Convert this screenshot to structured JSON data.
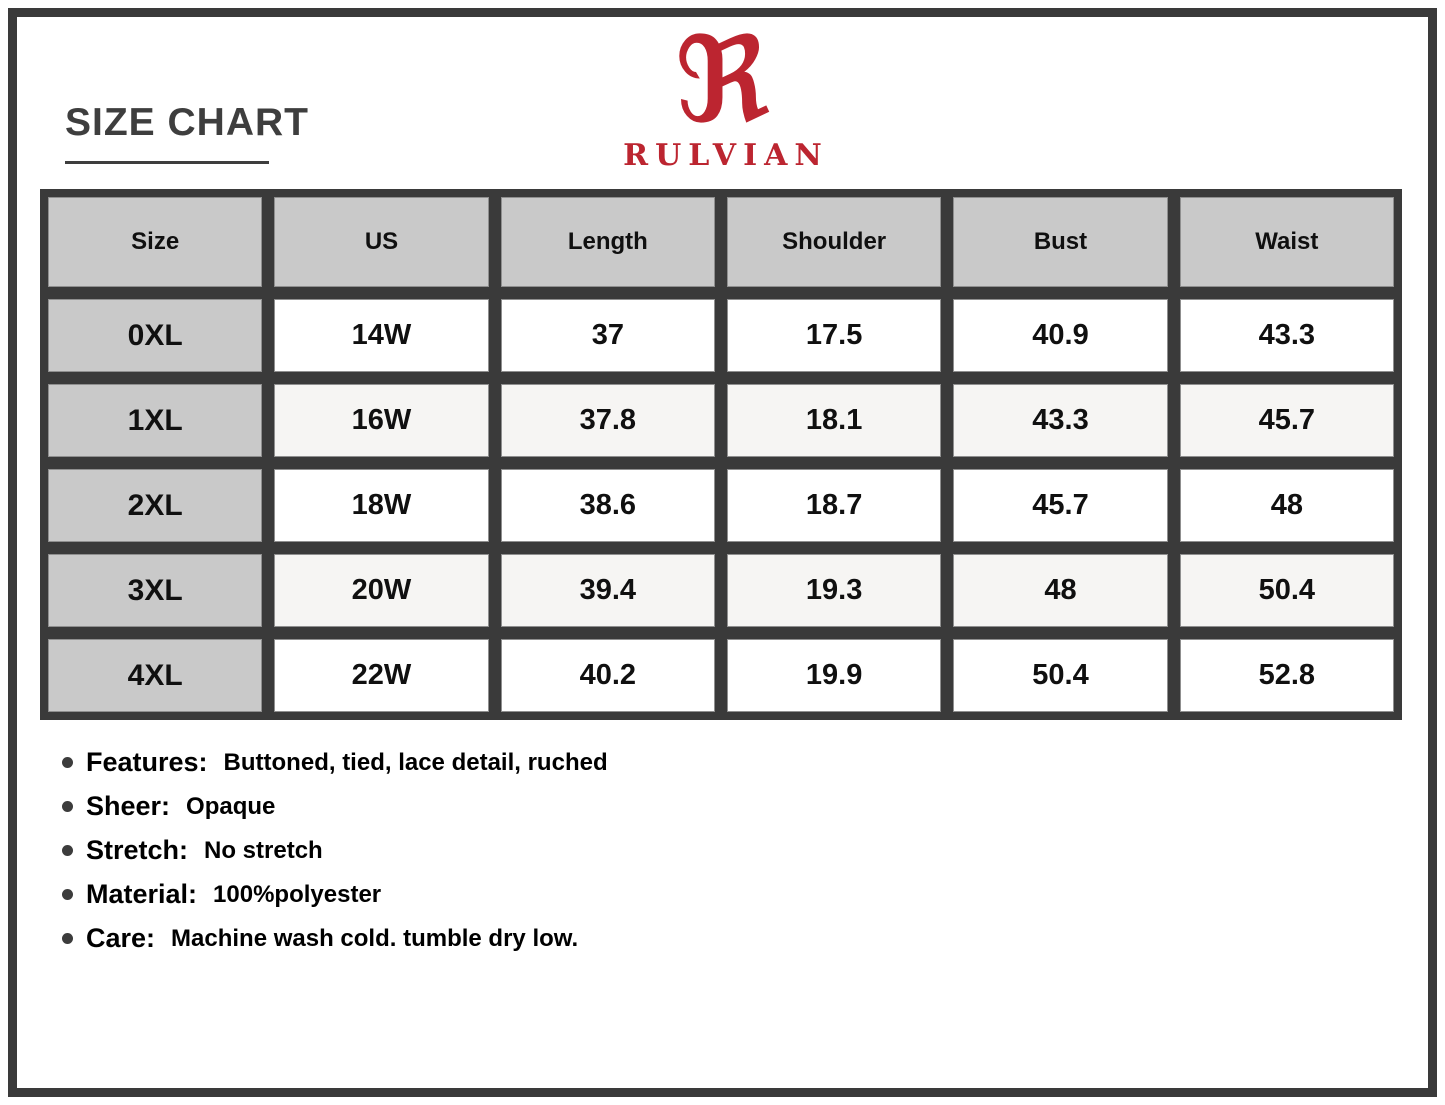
{
  "header": {
    "title": "SIZE CHART",
    "brand": "RULVIAN"
  },
  "icons": {
    "logo_r": "ℜ"
  },
  "colors": {
    "brand_red": "#bc2530",
    "frame_dark": "#3a3a3a",
    "header_gray": "#c9c9c9",
    "row_alt": "#f6f5f3",
    "row_base": "#ffffff",
    "text_dark": "#3e3e3e"
  },
  "chart_data": {
    "type": "table",
    "title": "SIZE CHART",
    "columns": [
      "Size",
      "US",
      "Length",
      "Shoulder",
      "Bust",
      "Waist"
    ],
    "rows": [
      [
        "0XL",
        "14W",
        "37",
        "17.5",
        "40.9",
        "43.3"
      ],
      [
        "1XL",
        "16W",
        "37.8",
        "18.1",
        "43.3",
        "45.7"
      ],
      [
        "2XL",
        "18W",
        "38.6",
        "18.7",
        "45.7",
        "48"
      ],
      [
        "3XL",
        "20W",
        "39.4",
        "19.3",
        "48",
        "50.4"
      ],
      [
        "4XL",
        "22W",
        "40.2",
        "19.9",
        "50.4",
        "52.8"
      ]
    ]
  },
  "details": [
    {
      "label": "Features:",
      "value": "Buttoned, tied, lace detail, ruched"
    },
    {
      "label": "Sheer:",
      "value": "Opaque"
    },
    {
      "label": "Stretch:",
      "value": "No stretch"
    },
    {
      "label": "Material:",
      "value": "100%polyester"
    },
    {
      "label": "Care:",
      "value": "Machine wash cold. tumble dry low."
    }
  ]
}
